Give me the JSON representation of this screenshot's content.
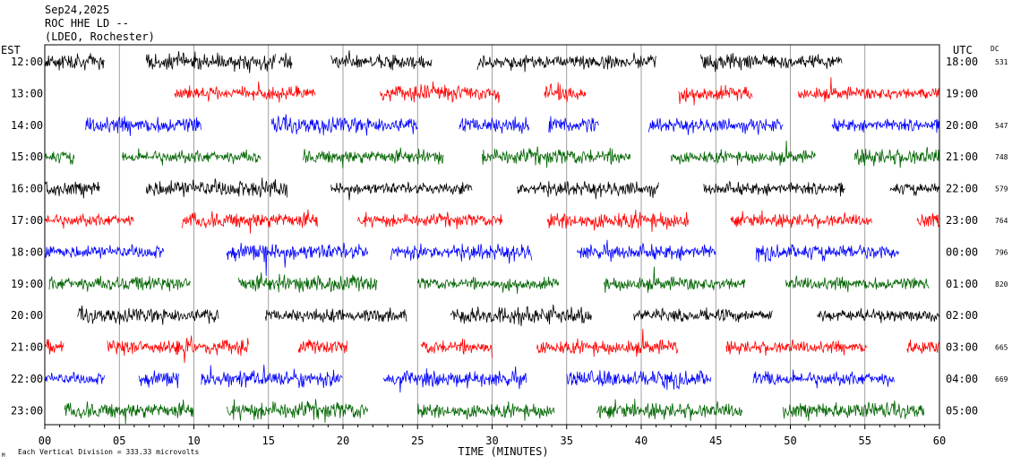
{
  "header": {
    "date": "Sep24,2025",
    "station": "ROC HHE LD --",
    "location": "(LDEO, Rochester)"
  },
  "axes": {
    "left_zone": "EST",
    "right_zone": "UTC",
    "dc_label": "DC",
    "x_title": "TIME (MINUTES)",
    "footer_note": "Each Vertical Division = 333.33 microvolts",
    "footer_mark": "M",
    "x_ticks": [
      "00",
      "05",
      "10",
      "15",
      "20",
      "25",
      "30",
      "35",
      "40",
      "45",
      "50",
      "55",
      "60"
    ]
  },
  "chart_data": {
    "type": "line",
    "title": "",
    "xlabel": "TIME (MINUTES)",
    "xlim": [
      0,
      60
    ],
    "color_cycle": [
      "#000000",
      "#ff0000",
      "#0000ff",
      "#006400"
    ],
    "rows": [
      {
        "est": "12:00",
        "utc": "18:00",
        "dc": "531",
        "color": "#000000",
        "segments": [
          [
            0,
            4
          ],
          [
            6.8,
            15.5
          ],
          [
            15.7,
            16.6
          ],
          [
            19.2,
            26
          ],
          [
            29,
            41
          ],
          [
            44,
            53.5
          ]
        ]
      },
      {
        "est": "13:00",
        "utc": "19:00",
        "dc": "",
        "color": "#ff0000",
        "segments": [
          [
            8.7,
            18.2
          ],
          [
            22.5,
            30.5
          ],
          [
            33.5,
            36.3
          ],
          [
            42.5,
            47.5
          ],
          [
            50.5,
            60
          ]
        ]
      },
      {
        "est": "14:00",
        "utc": "20:00",
        "dc": "547",
        "color": "#0000ff",
        "segments": [
          [
            2.7,
            10.5
          ],
          [
            15.2,
            25
          ],
          [
            27.8,
            32.5
          ],
          [
            33.8,
            37.2
          ],
          [
            40.5,
            49.5
          ],
          [
            52.8,
            60
          ]
        ]
      },
      {
        "est": "15:00",
        "utc": "21:00",
        "dc": "748",
        "color": "#006400",
        "segments": [
          [
            0,
            2
          ],
          [
            5.2,
            14.5
          ],
          [
            17.3,
            26.8
          ],
          [
            29.3,
            39.3
          ],
          [
            42,
            51.7
          ],
          [
            54.3,
            60
          ]
        ]
      },
      {
        "est": "16:00",
        "utc": "22:00",
        "dc": "579",
        "color": "#000000",
        "segments": [
          [
            0,
            3.7
          ],
          [
            6.8,
            16.3
          ],
          [
            19.2,
            28.7
          ],
          [
            31.7,
            41.2
          ],
          [
            44.2,
            53.7
          ],
          [
            56.7,
            60
          ]
        ]
      },
      {
        "est": "17:00",
        "utc": "23:00",
        "dc": "764",
        "color": "#ff0000",
        "segments": [
          [
            0,
            6
          ],
          [
            9.2,
            18.3
          ],
          [
            21,
            30.7
          ],
          [
            33.7,
            43.2
          ],
          [
            46,
            55.5
          ],
          [
            58.5,
            60
          ]
        ]
      },
      {
        "est": "18:00",
        "utc": "00:00",
        "dc": "796",
        "color": "#0000ff",
        "segments": [
          [
            0,
            8
          ],
          [
            12.2,
            21.7
          ],
          [
            23.2,
            32.7
          ],
          [
            35.7,
            45
          ],
          [
            47.7,
            57.3
          ]
        ]
      },
      {
        "est": "19:00",
        "utc": "01:00",
        "dc": "820",
        "color": "#006400",
        "segments": [
          [
            0.3,
            9.8
          ],
          [
            13,
            22.3
          ],
          [
            25,
            34.5
          ],
          [
            37.5,
            47
          ],
          [
            49.7,
            59.3
          ]
        ]
      },
      {
        "est": "20:00",
        "utc": "02:00",
        "dc": "",
        "color": "#000000",
        "segments": [
          [
            2.2,
            11.7
          ],
          [
            14.8,
            24.3
          ],
          [
            27.2,
            36.7
          ],
          [
            39.5,
            48.8
          ],
          [
            51.8,
            60
          ]
        ]
      },
      {
        "est": "21:00",
        "utc": "03:00",
        "dc": "665",
        "color": "#ff0000",
        "segments": [
          [
            0,
            1.3
          ],
          [
            4.2,
            13.7
          ],
          [
            17,
            20.3
          ],
          [
            25.2,
            30
          ],
          [
            33,
            42.5
          ],
          [
            45.7,
            55.2
          ],
          [
            57.8,
            60
          ]
        ]
      },
      {
        "est": "22:00",
        "utc": "04:00",
        "dc": "669",
        "color": "#0000ff",
        "segments": [
          [
            0,
            4
          ],
          [
            6.3,
            9
          ],
          [
            10.5,
            20
          ],
          [
            22.7,
            32.3
          ],
          [
            35,
            44.7
          ],
          [
            47.5,
            57
          ]
        ]
      },
      {
        "est": "23:00",
        "utc": "05:00",
        "dc": "",
        "color": "#006400",
        "segments": [
          [
            1.3,
            10
          ],
          [
            12.2,
            21.7
          ],
          [
            25,
            34.2
          ],
          [
            37,
            46.8
          ],
          [
            49.5,
            59
          ]
        ]
      }
    ]
  }
}
